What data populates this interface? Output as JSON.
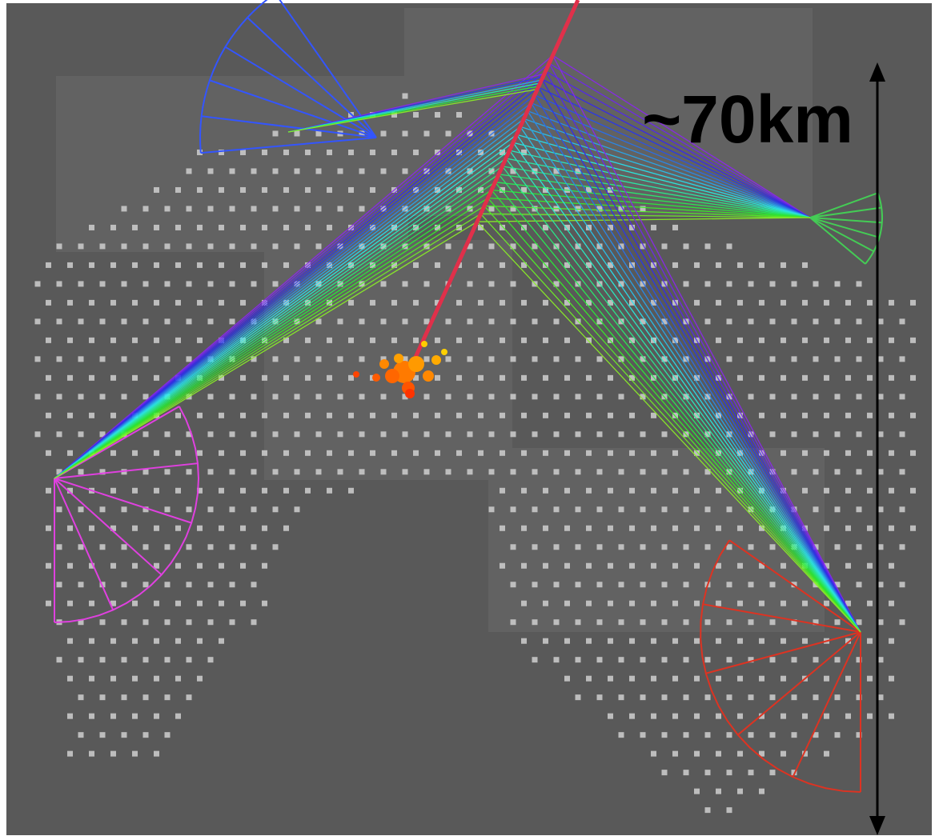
{
  "scale_label": "~70km"
}
